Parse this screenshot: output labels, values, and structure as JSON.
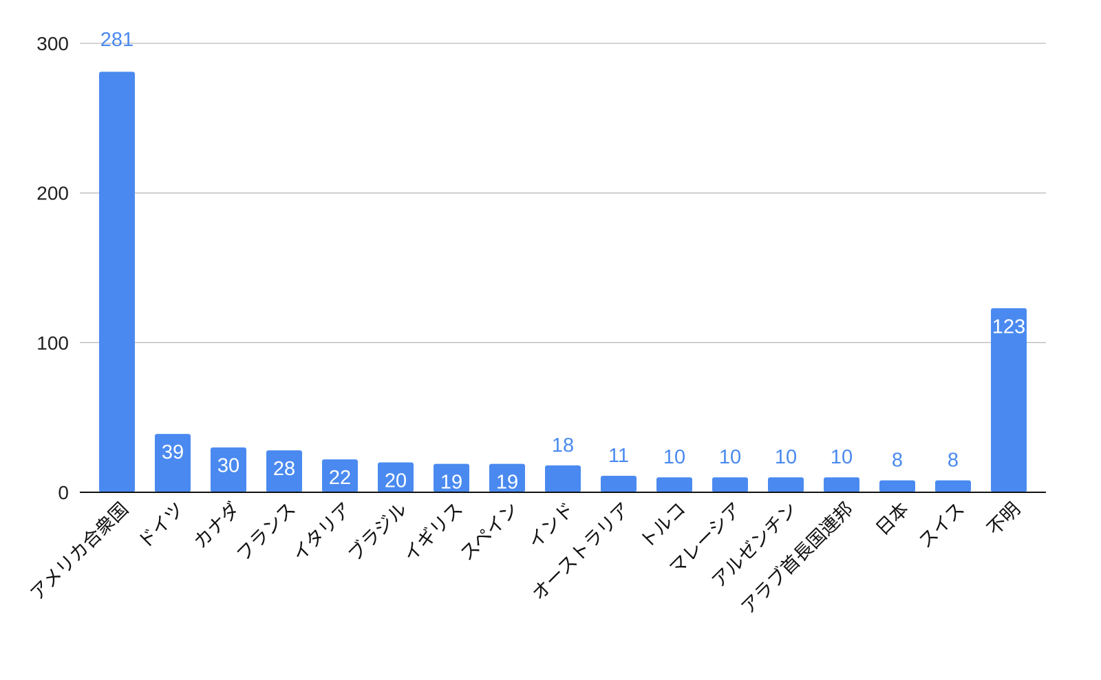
{
  "chart_data": {
    "type": "bar",
    "title": "",
    "xlabel": "",
    "ylabel": "",
    "categories": [
      "アメリカ合衆国",
      "ドイツ",
      "カナダ",
      "フランス",
      "イタリア",
      "ブラジル",
      "イギリス",
      "スペイン",
      "インド",
      "オーストラリア",
      "トルコ",
      "マレーシア",
      "アルゼンチン",
      "アラブ首長国連邦",
      "日本",
      "スイス",
      "不明"
    ],
    "values": [
      281,
      39,
      30,
      28,
      22,
      20,
      19,
      19,
      18,
      11,
      10,
      10,
      10,
      10,
      8,
      8,
      123
    ],
    "ylim": [
      0,
      300
    ],
    "yticks": [
      0,
      100,
      200,
      300
    ],
    "grid": true,
    "legend": "none",
    "colors": {
      "bar": "#4a8af0",
      "label_outside": "#4a8af0",
      "label_inside": "#ffffff",
      "grid": "#bbbbbb",
      "axis": "#111111"
    }
  }
}
